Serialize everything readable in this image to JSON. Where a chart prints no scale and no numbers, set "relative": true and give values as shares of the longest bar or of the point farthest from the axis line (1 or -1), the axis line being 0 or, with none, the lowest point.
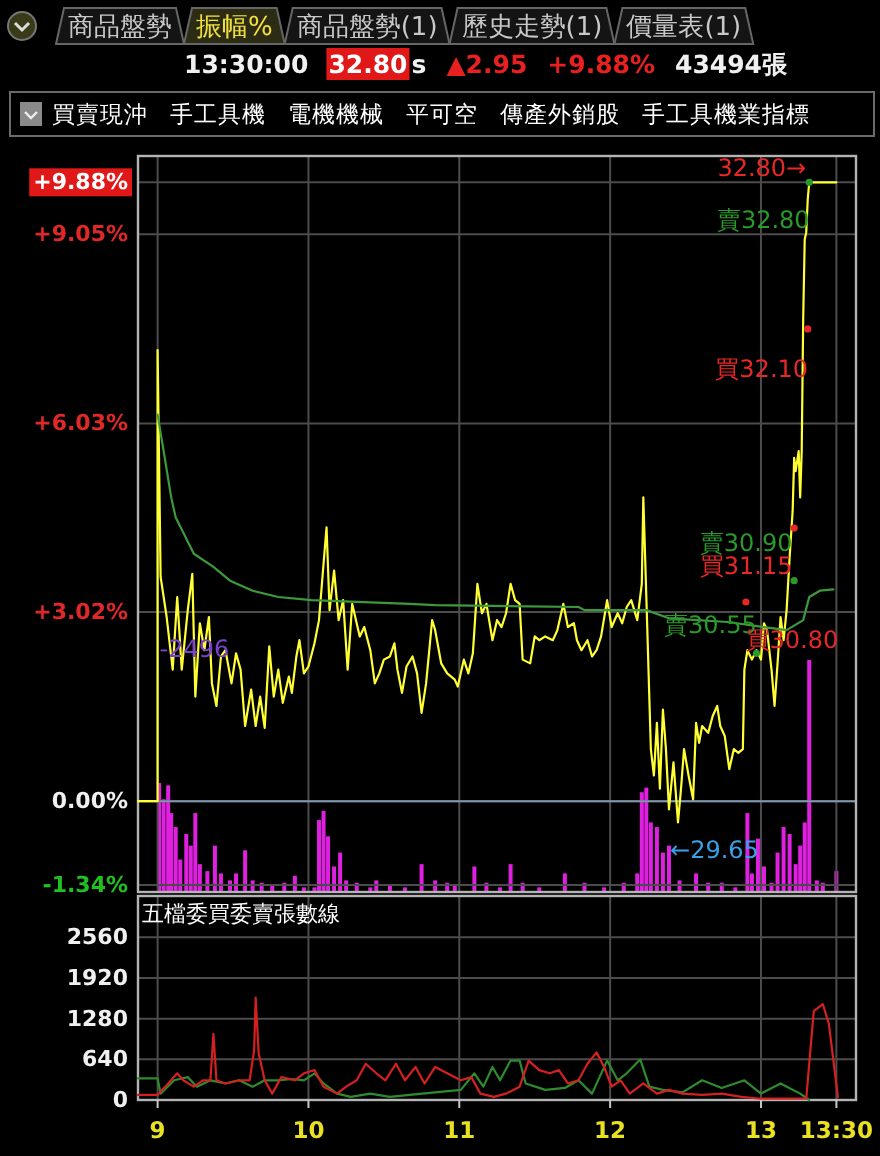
{
  "chart_data": [
    {
      "type": "other",
      "annotations": [
        "商品盤勢",
        "振幅%",
        "商品盤勢(1)",
        "歷史走勢(1)",
        "價量表(1)"
      ]
    },
    {
      "type": "other",
      "annotations": [
        "13:30:00",
        "32.80",
        "s",
        "▲2.95",
        "+9.88%",
        "43494張"
      ]
    },
    {
      "type": "other",
      "annotations": [
        "買賣現沖",
        "手工具機",
        "電機機械",
        "平可空",
        "傳產外銷股",
        "手工具機業指標"
      ]
    },
    {
      "type": "bar",
      "relative": true,
      "xlim": [
        8.87,
        13.63
      ],
      "tick_labels": false,
      "color": "#e020e0",
      "x": [
        9.01,
        9.04,
        9.07,
        9.09,
        9.12,
        9.15,
        9.19,
        9.22,
        9.25,
        9.28,
        9.33,
        9.38,
        9.42,
        9.48,
        9.52,
        9.58,
        9.63,
        9.69,
        9.76,
        9.84,
        9.91,
        9.97,
        10.04,
        10.07,
        10.1,
        10.13,
        10.17,
        10.21,
        10.25,
        10.32,
        10.41,
        10.45,
        10.54,
        10.64,
        10.75,
        10.84,
        10.92,
        10.97,
        11.1,
        11.18,
        11.27,
        11.34,
        11.42,
        11.53,
        11.7,
        11.83,
        11.96,
        12.09,
        12.18,
        12.21,
        12.24,
        12.27,
        12.31,
        12.35,
        12.39,
        12.46,
        12.57,
        12.65,
        12.74,
        12.83,
        12.91,
        12.94,
        12.98,
        13.02,
        13.07,
        13.11,
        13.15,
        13.19,
        13.23,
        13.26,
        13.29,
        13.32,
        13.37,
        13.41,
        13.5
      ],
      "values": [
        0.47,
        0.4,
        0.46,
        0.34,
        0.28,
        0.14,
        0.25,
        0.2,
        0.34,
        0.12,
        0.09,
        0.2,
        0.08,
        0.05,
        0.08,
        0.18,
        0.05,
        0.04,
        0.03,
        0.04,
        0.07,
        0.02,
        0.02,
        0.31,
        0.35,
        0.24,
        0.11,
        0.17,
        0.05,
        0.04,
        0.02,
        0.05,
        0.03,
        0.02,
        0.12,
        0.05,
        0.04,
        0.03,
        0.11,
        0.04,
        0.02,
        0.12,
        0.04,
        0.02,
        0.08,
        0.04,
        0.02,
        0.04,
        0.08,
        0.43,
        0.45,
        0.3,
        0.28,
        0.17,
        0.2,
        0.05,
        0.08,
        0.04,
        0.04,
        0.02,
        0.34,
        0.08,
        0.23,
        0.11,
        0.04,
        0.17,
        0.28,
        0.25,
        0.12,
        0.2,
        0.3,
        1,
        0.05,
        0.04,
        0.09
      ]
    },
    {
      "type": "line",
      "xlim": [
        8.87,
        13.63
      ],
      "xticks": [
        9,
        10,
        11,
        12,
        13,
        13.5
      ],
      "ylim": [
        -1.45,
        10.3
      ],
      "yticks": [
        {
          "value": 9.88,
          "label": "+9.88%"
        },
        {
          "value": 9.05,
          "label": "+9.05%"
        },
        {
          "value": 6.03,
          "label": "+6.03%"
        },
        {
          "value": 3.02,
          "label": "+3.02%"
        },
        {
          "value": 0,
          "label": "0.00%"
        },
        {
          "value": -1.34,
          "label": "-1.34%"
        }
      ],
      "tick_labels": "y",
      "grid": true,
      "ref_lines": [
        {
          "axis": "y",
          "value": 0,
          "color": "#7f98b0"
        }
      ],
      "series": [
        {
          "color": "#ffff33",
          "x": [
            8.87,
            9.0,
            9.0,
            9.01,
            9.02,
            9.06,
            9.1,
            9.13,
            9.16,
            9.2,
            9.23,
            9.25,
            9.28,
            9.31,
            9.34,
            9.36,
            9.39,
            9.42,
            9.45,
            9.49,
            9.52,
            9.55,
            9.58,
            9.62,
            9.65,
            9.68,
            9.71,
            9.74,
            9.77,
            9.8,
            9.83,
            9.87,
            9.89,
            9.92,
            9.94,
            9.97,
            10.0,
            10.04,
            10.07,
            10.1,
            10.12,
            10.14,
            10.17,
            10.2,
            10.23,
            10.26,
            10.29,
            10.31,
            10.34,
            10.37,
            10.41,
            10.44,
            10.47,
            10.5,
            10.54,
            10.57,
            10.59,
            10.62,
            10.65,
            10.69,
            10.72,
            10.75,
            10.78,
            10.82,
            10.84,
            10.88,
            10.92,
            10.97,
            10.99,
            11.03,
            11.06,
            11.09,
            11.12,
            11.15,
            11.18,
            11.22,
            11.25,
            11.28,
            11.31,
            11.34,
            11.37,
            11.4,
            11.42,
            11.47,
            11.5,
            11.53,
            11.57,
            11.62,
            11.65,
            11.69,
            11.72,
            11.76,
            11.78,
            11.81,
            11.85,
            11.88,
            11.91,
            11.94,
            11.98,
            12.01,
            12.05,
            12.08,
            12.11,
            12.14,
            12.18,
            12.21,
            12.22,
            12.24,
            12.27,
            12.29,
            12.31,
            12.33,
            12.35,
            12.37,
            12.39,
            12.42,
            12.45,
            12.47,
            12.49,
            12.52,
            12.55,
            12.57,
            12.59,
            12.61,
            12.65,
            12.68,
            12.71,
            12.73,
            12.76,
            12.79,
            12.82,
            12.85,
            12.88,
            12.89,
            12.91,
            12.94,
            12.97,
            13.0,
            13.02,
            13.04,
            13.07,
            13.09,
            13.11,
            13.13,
            13.15,
            13.17,
            13.19,
            13.21,
            13.22,
            13.23,
            13.25,
            13.26,
            13.27,
            13.28,
            13.29,
            13.3,
            13.31,
            13.32,
            13.5
          ],
          "values": [
            0,
            0,
            7.2,
            5.35,
            3.58,
            2.94,
            2.1,
            3.26,
            2.1,
            3.05,
            3.63,
            1.67,
            2.84,
            2.41,
            2.94,
            1.88,
            1.52,
            2.31,
            2.41,
            1.88,
            2.36,
            2.1,
            1.2,
            1.78,
            1.2,
            1.67,
            1.17,
            2.47,
            1.67,
            2.1,
            1.57,
            1.99,
            1.73,
            2.31,
            2.57,
            2.04,
            2.15,
            2.52,
            2.89,
            3.79,
            4.37,
            3.05,
            3.68,
            2.89,
            3.21,
            2.1,
            3.15,
            2.94,
            2.63,
            2.78,
            2.41,
            1.88,
            2.04,
            2.26,
            2.31,
            2.52,
            2.1,
            1.73,
            2.15,
            2.31,
            2.04,
            1.41,
            1.88,
            2.89,
            2.73,
            2.2,
            2.04,
            1.94,
            1.83,
            2.26,
            2.04,
            2.36,
            3.47,
            3.0,
            3.15,
            2.57,
            2.89,
            2.78,
            3.0,
            3.47,
            3.21,
            3.15,
            2.26,
            2.2,
            2.63,
            2.57,
            2.63,
            2.57,
            2.73,
            3.15,
            2.78,
            2.84,
            2.57,
            2.41,
            2.57,
            2.31,
            2.41,
            2.63,
            3.21,
            2.78,
            3.0,
            2.84,
            3.1,
            3.21,
            2.89,
            3.47,
            4.85,
            3.26,
            0.83,
            0.41,
            1.25,
            0.2,
            1.46,
            0.83,
            -0.13,
            0.62,
            -0.34,
            0.2,
            0.83,
            0.41,
            0.03,
            1.25,
            0.93,
            1.2,
            1.09,
            1.36,
            1.52,
            1.2,
            1.04,
            0.51,
            0.83,
            0.77,
            0.83,
            2.1,
            2.41,
            2.26,
            2.41,
            2.26,
            2.84,
            2.73,
            2.1,
            1.52,
            2.2,
            2.94,
            2.57,
            3.05,
            3.9,
            4.63,
            5.48,
            5.27,
            5.59,
            4.85,
            5.59,
            7.7,
            8.97,
            9.08,
            9.61,
            9.88,
            9.88
          ]
        },
        {
          "color": "#3c9a3c",
          "x": [
            9.0,
            9.04,
            9.09,
            9.12,
            9.24,
            9.37,
            9.48,
            9.63,
            9.8,
            10.02,
            10.67,
            10.84,
            11.79,
            11.83,
            12.24,
            12.39,
            12.78,
            13.17,
            13.28,
            13.32,
            13.39,
            13.48
          ],
          "values": [
            6.17,
            5.59,
            4.85,
            4.53,
            3.95,
            3.74,
            3.52,
            3.36,
            3.26,
            3.21,
            3.15,
            3.13,
            3.1,
            3.05,
            3.05,
            2.92,
            2.86,
            2.73,
            2.89,
            3.26,
            3.36,
            3.38
          ]
        }
      ],
      "annotations": [
        {
          "text": "32.80→",
          "x": 13.3,
          "y": 9.88
        },
        {
          "text": "賣32.80",
          "x": 13.32,
          "y": 9.88
        },
        {
          "text": "買32.10",
          "x": 13.31,
          "y": 7.54
        },
        {
          "text": "賣30.90",
          "x": 13.22,
          "y": 3.52
        },
        {
          "text": "買31.15",
          "x": 13.22,
          "y": 4.36
        },
        {
          "text": "賣30.55",
          "x": 12.97,
          "y": 2.36
        },
        {
          "text": "買30.80",
          "x": 12.9,
          "y": 3.18
        },
        "←29.65",
        "-2496"
      ]
    },
    {
      "type": "line",
      "title": "五檔委買委賣張數線",
      "xlim": [
        8.87,
        13.63
      ],
      "xticks": [
        9,
        10,
        11,
        12,
        13,
        {
          "value": 13.5,
          "label": "13:30"
        }
      ],
      "ylim": [
        0,
        3210
      ],
      "yticks": [
        0,
        640,
        1280,
        1920,
        2560
      ],
      "grid": true,
      "series": [
        {
          "color": "#2e8b2e",
          "x": [
            8.87,
            9.0,
            9.02,
            9.11,
            9.2,
            9.26,
            9.35,
            9.45,
            9.54,
            9.63,
            9.71,
            9.8,
            9.89,
            9.97,
            10.04,
            10.1,
            10.19,
            10.28,
            10.41,
            10.54,
            10.67,
            10.84,
            11.01,
            11.1,
            11.16,
            11.22,
            11.27,
            11.34,
            11.4,
            11.44,
            11.57,
            11.7,
            11.79,
            11.88,
            11.98,
            12.05,
            12.11,
            12.2,
            12.26,
            12.35,
            12.48,
            12.61,
            12.74,
            12.89,
            13.0,
            13.13,
            13.26,
            13.32
          ],
          "values": [
            340,
            340,
            100,
            310,
            360,
            210,
            310,
            260,
            310,
            210,
            310,
            310,
            330,
            310,
            420,
            260,
            100,
            50,
            100,
            50,
            80,
            120,
            160,
            420,
            210,
            520,
            310,
            620,
            620,
            260,
            160,
            190,
            310,
            100,
            620,
            310,
            420,
            640,
            210,
            160,
            120,
            310,
            190,
            310,
            100,
            260,
            100,
            0
          ]
        },
        {
          "color": "#d42020",
          "x": [
            8.87,
            9.0,
            9.07,
            9.13,
            9.17,
            9.24,
            9.3,
            9.35,
            9.37,
            9.39,
            9.45,
            9.54,
            9.61,
            9.64,
            9.65,
            9.67,
            9.71,
            9.76,
            9.82,
            9.91,
            9.97,
            10.04,
            10.1,
            10.19,
            10.25,
            10.32,
            10.38,
            10.45,
            10.51,
            10.58,
            10.64,
            10.71,
            10.77,
            10.84,
            10.92,
            11.01,
            11.08,
            11.14,
            11.23,
            11.31,
            11.4,
            11.46,
            11.53,
            11.6,
            11.66,
            11.72,
            11.79,
            11.85,
            11.91,
            11.96,
            12.01,
            12.07,
            12.13,
            12.22,
            12.31,
            12.39,
            12.48,
            12.61,
            12.74,
            12.87,
            13.0,
            13.17,
            13.3,
            13.35,
            13.41,
            13.45,
            13.51
          ],
          "values": [
            80,
            80,
            260,
            420,
            310,
            210,
            310,
            310,
            1040,
            310,
            260,
            310,
            310,
            780,
            1610,
            730,
            310,
            100,
            360,
            310,
            420,
            470,
            210,
            100,
            210,
            310,
            570,
            420,
            310,
            570,
            310,
            520,
            260,
            520,
            420,
            310,
            360,
            100,
            50,
            100,
            210,
            620,
            470,
            420,
            470,
            260,
            310,
            570,
            750,
            520,
            210,
            310,
            100,
            260,
            100,
            160,
            100,
            80,
            100,
            50,
            20,
            20,
            20,
            1400,
            1510,
            1200,
            50
          ]
        }
      ]
    }
  ]
}
